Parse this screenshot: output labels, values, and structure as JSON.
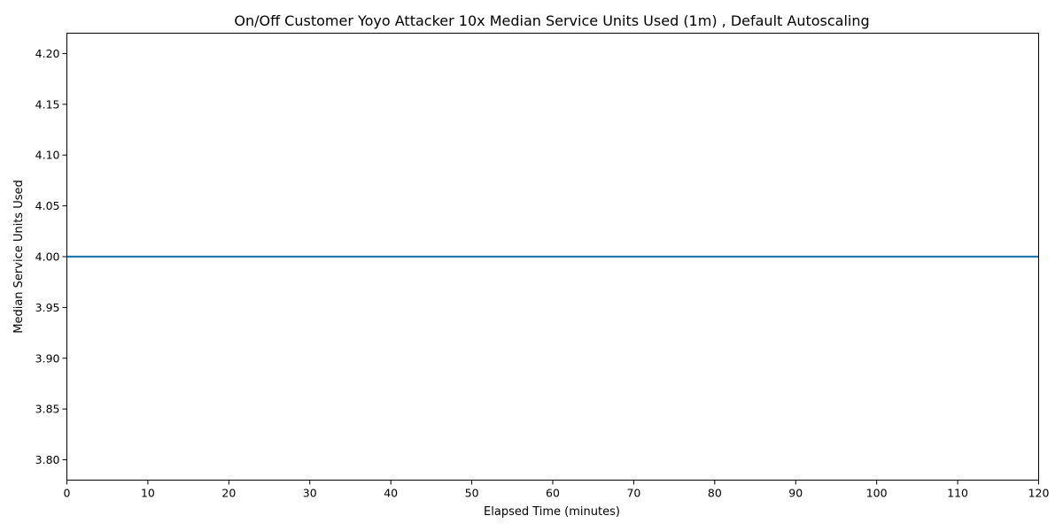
{
  "chart_data": {
    "type": "line",
    "title": "On/Off Customer Yoyo Attacker 10x Median Service Units Used (1m) , Default Autoscaling",
    "xlabel": "Elapsed Time (minutes)",
    "ylabel": "Median Service Units Used",
    "xlim": [
      0,
      120
    ],
    "ylim": [
      3.78,
      4.22
    ],
    "xticks": [
      0,
      10,
      20,
      30,
      40,
      50,
      60,
      70,
      80,
      90,
      100,
      110,
      120
    ],
    "xtick_labels": [
      "0",
      "10",
      "20",
      "30",
      "40",
      "50",
      "60",
      "70",
      "80",
      "90",
      "100",
      "110",
      "120"
    ],
    "yticks": [
      3.8,
      3.85,
      3.9,
      3.95,
      4.0,
      4.05,
      4.1,
      4.15,
      4.2
    ],
    "ytick_labels": [
      "3.80",
      "3.85",
      "3.90",
      "3.95",
      "4.00",
      "4.05",
      "4.10",
      "4.15",
      "4.20"
    ],
    "grid": false,
    "colors": {
      "series": "#1f77b4"
    },
    "series": [
      {
        "x": [
          0,
          10,
          20,
          30,
          40,
          50,
          60,
          70,
          80,
          90,
          100,
          110,
          120
        ],
        "y": [
          4.0,
          4.0,
          4.0,
          4.0,
          4.0,
          4.0,
          4.0,
          4.0,
          4.0,
          4.0,
          4.0,
          4.0,
          4.0
        ]
      }
    ]
  }
}
